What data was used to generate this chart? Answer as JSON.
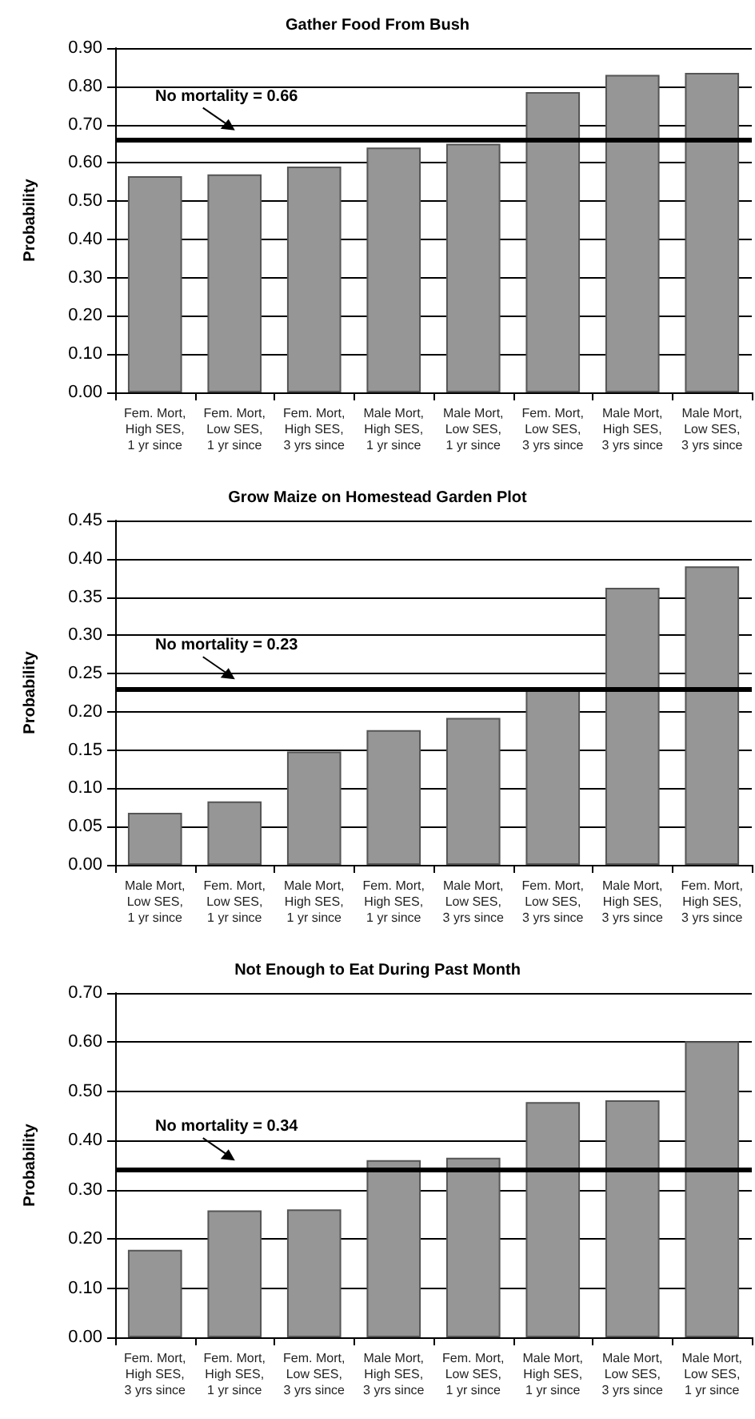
{
  "chart_data": [
    {
      "type": "bar",
      "title": "Gather Food From Bush",
      "ylabel": "Probability",
      "categories": [
        "Fem. Mort, High SES, 1 yr since",
        "Fem. Mort, Low SES, 1 yr since",
        "Fem. Mort, High SES, 3 yrs since",
        "Male Mort, High SES, 1 yr since",
        "Male Mort, Low SES, 1 yr since",
        "Fem. Mort, Low SES, 3 yrs since",
        "Male Mort, High SES, 3 yrs since",
        "Male Mort, Low SES, 3 yrs since"
      ],
      "values": [
        0.565,
        0.57,
        0.59,
        0.64,
        0.65,
        0.785,
        0.83,
        0.835
      ],
      "color": "#969696",
      "ylim": [
        0,
        0.9
      ],
      "yticks": [
        {
          "value": 0,
          "label": "0.00"
        },
        {
          "value": 0.1,
          "label": "0.10"
        },
        {
          "value": 0.2,
          "label": "0.20"
        },
        {
          "value": 0.3,
          "label": "0.30"
        },
        {
          "value": 0.4,
          "label": "0.40"
        },
        {
          "value": 0.5,
          "label": "0.50"
        },
        {
          "value": 0.6,
          "label": "0.60"
        },
        {
          "value": 0.7,
          "label": "0.70"
        },
        {
          "value": 0.8,
          "label": "0.80"
        },
        {
          "value": 0.9,
          "label": "0.90"
        }
      ],
      "grid": "y",
      "ref_lines": [
        {
          "axis": "y",
          "value": 0.66,
          "label": "No mortality = 0.66",
          "color": "#000000"
        }
      ]
    },
    {
      "type": "bar",
      "title": "Grow Maize on Homestead Garden Plot",
      "ylabel": "Probability",
      "categories": [
        "Male Mort, Low SES, 1 yr since",
        "Fem. Mort, Low SES, 1 yr since",
        "Male Mort, High SES, 1 yr since",
        "Fem. Mort, High SES, 1 yr since",
        "Male Mort, Low SES, 3 yrs since",
        "Fem. Mort, Low SES, 3 yrs since",
        "Male Mort, High SES, 3 yrs since",
        "Fem. Mort, High SES, 3 yrs since"
      ],
      "values": [
        0.068,
        0.083,
        0.148,
        0.176,
        0.192,
        0.23,
        0.362,
        0.39
      ],
      "color": "#969696",
      "ylim": [
        0,
        0.45
      ],
      "yticks": [
        {
          "value": 0,
          "label": "0.00"
        },
        {
          "value": 0.05,
          "label": "0.05"
        },
        {
          "value": 0.1,
          "label": "0.10"
        },
        {
          "value": 0.15,
          "label": "0.15"
        },
        {
          "value": 0.2,
          "label": "0.20"
        },
        {
          "value": 0.25,
          "label": "0.25"
        },
        {
          "value": 0.3,
          "label": "0.30"
        },
        {
          "value": 0.35,
          "label": "0.35"
        },
        {
          "value": 0.4,
          "label": "0.40"
        },
        {
          "value": 0.45,
          "label": "0.45"
        }
      ],
      "grid": "y",
      "ref_lines": [
        {
          "axis": "y",
          "value": 0.23,
          "label": "No mortality = 0.23",
          "color": "#000000"
        }
      ]
    },
    {
      "type": "bar",
      "title": "Not Enough to Eat During Past Month",
      "ylabel": "Probability",
      "categories": [
        "Fem. Mort, High SES, 3 yrs since",
        "Fem. Mort, High SES, 1 yr since",
        "Fem. Mort, Low SES, 3 yrs since",
        "Male Mort, High SES, 3 yrs since",
        "Fem. Mort, Low SES, 1 yr since",
        "Male Mort, High SES, 1 yr since",
        "Male Mort, Low SES, 3 yrs since",
        "Male Mort, Low SES, 1 yr since"
      ],
      "values": [
        0.178,
        0.258,
        0.26,
        0.36,
        0.365,
        0.478,
        0.482,
        0.602
      ],
      "color": "#969696",
      "ylim": [
        0,
        0.7
      ],
      "yticks": [
        {
          "value": 0,
          "label": "0.00"
        },
        {
          "value": 0.1,
          "label": "0.10"
        },
        {
          "value": 0.2,
          "label": "0.20"
        },
        {
          "value": 0.3,
          "label": "0.30"
        },
        {
          "value": 0.4,
          "label": "0.40"
        },
        {
          "value": 0.5,
          "label": "0.50"
        },
        {
          "value": 0.6,
          "label": "0.60"
        },
        {
          "value": 0.7,
          "label": "0.70"
        }
      ],
      "grid": "y",
      "ref_lines": [
        {
          "axis": "y",
          "value": 0.34,
          "label": "No mortality = 0.34",
          "color": "#000000"
        }
      ]
    }
  ]
}
